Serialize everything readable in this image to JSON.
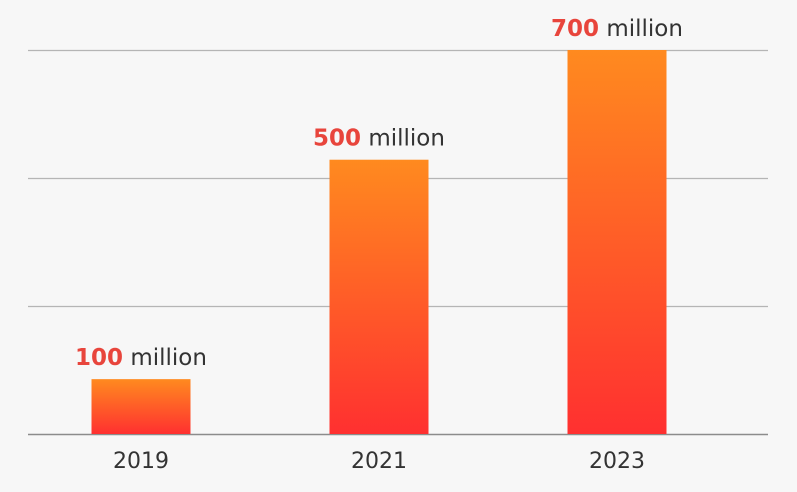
{
  "chart_data": {
    "type": "bar",
    "title": "",
    "xlabel": "",
    "ylabel": "",
    "categories": [
      "2019",
      "2021",
      "2023"
    ],
    "values": [
      100,
      500,
      700
    ],
    "value_labels": [
      {
        "number": "100",
        "unit": " million"
      },
      {
        "number": "500",
        "unit": " million"
      },
      {
        "number": "700",
        "unit": " million"
      }
    ],
    "ylim": [
      0,
      700
    ],
    "y_gridlines": [
      0,
      233.3,
      466.7,
      700
    ],
    "grid": true,
    "legend": "none",
    "colors": {
      "bar_top": "#ff8a1f",
      "bar_bottom": "#ff3030",
      "label_number": "#e8453c",
      "text": "#333333",
      "grid": "#b5b5b5",
      "background": "#f7f7f7"
    }
  }
}
